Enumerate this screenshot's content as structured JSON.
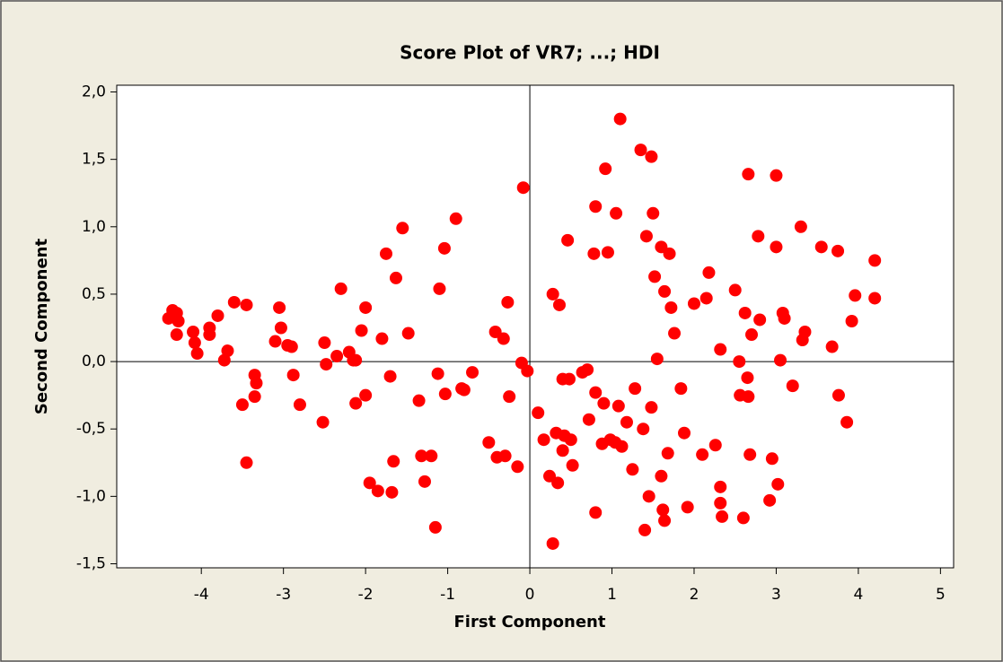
{
  "chart_data": {
    "type": "scatter",
    "title": "Score Plot of VR7; ...; HDI",
    "x_label": "First Component",
    "y_label": "Second Component",
    "x": [
      -4.4,
      -4.35,
      -4.3,
      -4.28,
      -4.3,
      -4.1,
      -4.08,
      -4.05,
      -3.9,
      -3.9,
      -3.8,
      -3.72,
      -3.68,
      -3.6,
      -3.5,
      -3.45,
      -3.45,
      -3.35,
      -3.35,
      -3.33,
      -3.1,
      -3.05,
      -3.03,
      -2.95,
      -2.9,
      -2.88,
      -2.8,
      -2.52,
      -2.5,
      -2.48,
      -2.35,
      -2.3,
      -2.2,
      -2.15,
      -2.12,
      -2.12,
      -2.05,
      -2.0,
      -2.0,
      -1.95,
      -1.85,
      -1.8,
      -1.75,
      -1.7,
      -1.68,
      -1.66,
      -1.63,
      -1.55,
      -1.48,
      -1.35,
      -1.32,
      -1.28,
      -1.2,
      -1.15,
      -1.12,
      -1.1,
      -1.04,
      -1.03,
      -0.9,
      -0.83,
      -0.8,
      -0.7,
      -0.5,
      -0.42,
      -0.4,
      -0.32,
      -0.3,
      -0.27,
      -0.25,
      -0.15,
      -0.1,
      -0.08,
      -0.03,
      0.1,
      0.17,
      0.24,
      0.28,
      0.28,
      0.32,
      0.34,
      0.36,
      0.4,
      0.4,
      0.42,
      0.46,
      0.48,
      0.5,
      0.52,
      0.64,
      0.7,
      0.72,
      0.78,
      0.8,
      0.8,
      0.8,
      0.88,
      0.9,
      0.92,
      0.95,
      0.98,
      1.04,
      1.05,
      1.08,
      1.1,
      1.12,
      1.18,
      1.25,
      1.28,
      1.35,
      1.38,
      1.42,
      1.45,
      1.48,
      1.48,
      1.5,
      1.52,
      1.55,
      1.6,
      1.6,
      1.62,
      1.64,
      1.64,
      1.68,
      1.7,
      1.72,
      1.76,
      1.84,
      1.88,
      1.92,
      2.0,
      2.1,
      2.15,
      2.18,
      2.26,
      2.32,
      2.32,
      2.32,
      2.34,
      2.5,
      2.55,
      2.56,
      2.6,
      2.62,
      2.65,
      2.66,
      2.68,
      2.7,
      2.66,
      2.78,
      2.8,
      2.92,
      2.95,
      3.0,
      3.0,
      3.02,
      3.05,
      3.08,
      3.1,
      3.2,
      3.3,
      3.32,
      3.35,
      3.55,
      3.68,
      3.75,
      3.76,
      3.86,
      3.92,
      3.96,
      4.2,
      4.2,
      1.4
    ],
    "values": [
      0.32,
      0.38,
      0.36,
      0.3,
      0.2,
      0.22,
      0.14,
      0.06,
      0.2,
      0.25,
      0.34,
      0.01,
      0.08,
      0.44,
      -0.32,
      0.42,
      -0.75,
      -0.1,
      -0.26,
      -0.16,
      0.15,
      0.4,
      0.25,
      0.12,
      0.11,
      -0.1,
      -0.32,
      -0.45,
      0.14,
      -0.02,
      0.04,
      0.54,
      0.07,
      0.01,
      0.01,
      -0.31,
      0.23,
      0.4,
      -0.25,
      -0.9,
      -0.96,
      0.17,
      0.8,
      -0.11,
      -0.97,
      -0.74,
      0.62,
      0.99,
      0.21,
      -0.29,
      -0.7,
      -0.89,
      -0.7,
      -1.23,
      -0.09,
      0.54,
      0.84,
      -0.24,
      1.06,
      -0.2,
      -0.21,
      -0.08,
      -0.6,
      0.22,
      -0.71,
      0.17,
      -0.7,
      0.44,
      -0.26,
      -0.78,
      -0.01,
      1.29,
      -0.07,
      -0.38,
      -0.58,
      -0.85,
      0.5,
      -1.35,
      -0.53,
      -0.9,
      0.42,
      -0.66,
      -0.13,
      -0.55,
      0.9,
      -0.13,
      -0.58,
      -0.77,
      -0.08,
      -0.06,
      -0.43,
      0.8,
      -1.12,
      1.15,
      -0.23,
      -0.61,
      -0.31,
      1.43,
      0.81,
      -0.58,
      -0.6,
      1.1,
      -0.33,
      1.8,
      -0.63,
      -0.45,
      -0.8,
      -0.2,
      1.57,
      -0.5,
      0.93,
      -1.0,
      -0.34,
      1.52,
      1.1,
      0.63,
      0.02,
      0.85,
      -0.85,
      -1.1,
      0.52,
      -1.18,
      -0.68,
      0.8,
      0.4,
      0.21,
      -0.2,
      -0.53,
      -1.08,
      0.43,
      -0.69,
      0.47,
      0.66,
      -0.62,
      0.09,
      -0.93,
      -1.05,
      -1.15,
      0.53,
      0.0,
      -0.25,
      -1.16,
      0.36,
      -0.12,
      -0.26,
      -0.69,
      0.2,
      1.39,
      0.93,
      0.31,
      -1.03,
      -0.72,
      0.85,
      1.38,
      -0.91,
      0.01,
      0.36,
      0.32,
      -0.18,
      1.0,
      0.16,
      0.22,
      0.85,
      0.11,
      0.82,
      -0.25,
      -0.45,
      0.3,
      0.49,
      0.75,
      0.47,
      -1.25
    ],
    "color": "#ff0000",
    "xlim": [
      -5.03,
      5.16
    ],
    "ylim": [
      -1.53,
      2.05
    ],
    "xticks": [
      -4,
      -3,
      -2,
      -1,
      0,
      1,
      2,
      3,
      4,
      5
    ],
    "yticks": [
      {
        "value": -1.5,
        "label": "-1,5"
      },
      {
        "value": -1.0,
        "label": "-1,0"
      },
      {
        "value": -0.5,
        "label": "-0,5"
      },
      {
        "value": 0.0,
        "label": "0,0"
      },
      {
        "value": 0.5,
        "label": "0,5"
      },
      {
        "value": 1.0,
        "label": "1,0"
      },
      {
        "value": 1.5,
        "label": "1,5"
      },
      {
        "value": 2.0,
        "label": "2,0"
      }
    ],
    "reference_lines": {
      "x": 0,
      "y": 0
    }
  }
}
